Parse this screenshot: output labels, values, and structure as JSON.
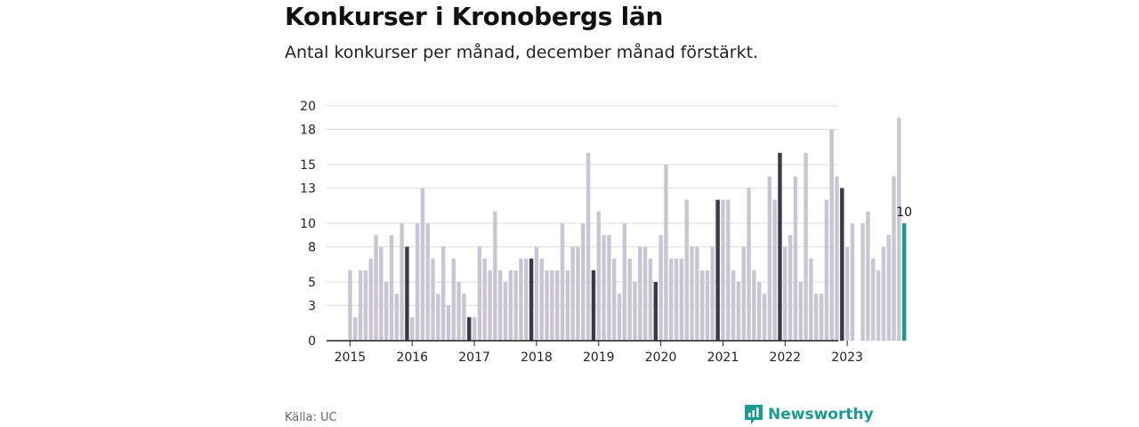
{
  "title": "Konkurser i Kronobergs län",
  "subtitle": "Antal konkurser per månad, december månad förstärkt.",
  "source": "Källa: UC",
  "brand": "Newsworthy",
  "colors": {
    "bar": "#c8c6d2",
    "december": "#3a3944",
    "latest": "#1a9b8f",
    "grid": "#dddddd",
    "axis": "#222222",
    "brand": "#1a9b8f"
  },
  "chart_data": {
    "type": "bar",
    "y_ticks": [
      0,
      3,
      5,
      8,
      10,
      13,
      15,
      18,
      20
    ],
    "ylim": [
      0,
      20
    ],
    "x_tick_labels": [
      "2015",
      "2016",
      "2017",
      "2018",
      "2019",
      "2020",
      "2021",
      "2022",
      "2023"
    ],
    "grid": true,
    "latest_label": "10",
    "series": [
      {
        "year": 2015,
        "values": [
          6,
          2,
          6,
          6,
          7,
          9,
          8,
          5,
          9,
          4,
          10,
          8
        ]
      },
      {
        "year": 2016,
        "values": [
          2,
          10,
          13,
          10,
          7,
          4,
          8,
          3,
          7,
          5,
          4,
          2
        ]
      },
      {
        "year": 2017,
        "values": [
          2,
          8,
          7,
          6,
          11,
          6,
          5,
          6,
          6,
          7,
          7,
          7
        ]
      },
      {
        "year": 2018,
        "values": [
          8,
          7,
          6,
          6,
          6,
          10,
          6,
          8,
          8,
          10,
          16,
          6
        ]
      },
      {
        "year": 2019,
        "values": [
          11,
          9,
          9,
          7,
          4,
          10,
          7,
          5,
          8,
          8,
          7,
          5
        ]
      },
      {
        "year": 2020,
        "values": [
          9,
          15,
          7,
          7,
          7,
          12,
          8,
          8,
          6,
          6,
          8,
          12
        ]
      },
      {
        "year": 2021,
        "values": [
          12,
          12,
          6,
          5,
          8,
          13,
          6,
          5,
          4,
          14,
          12,
          16
        ]
      },
      {
        "year": 2022,
        "values": [
          8,
          9,
          14,
          5,
          16,
          7,
          4,
          4,
          12,
          18,
          14,
          13
        ]
      },
      {
        "year": 2023,
        "values": [
          8,
          10,
          0,
          10,
          11,
          7,
          6,
          8,
          9,
          14,
          19,
          10
        ]
      }
    ]
  }
}
